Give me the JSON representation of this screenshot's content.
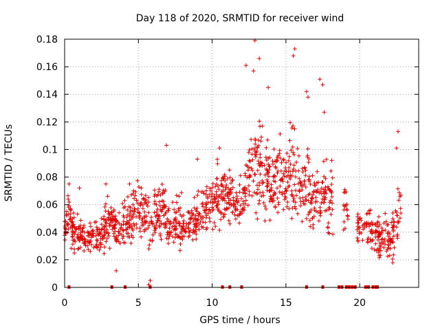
{
  "chart_data": {
    "type": "scatter",
    "title": "Day 118 of 2020, SRMTID for receiver wind",
    "xlabel": "GPS time / hours",
    "ylabel": "SRMTID / TECUs",
    "xlim": [
      0,
      24
    ],
    "ylim": [
      0,
      0.18
    ],
    "xticks": [
      0,
      5,
      10,
      15,
      20
    ],
    "xtick_labels": [
      "0",
      "5",
      "10",
      "15",
      "20"
    ],
    "yticks": [
      0,
      0.02,
      0.04,
      0.06,
      0.08,
      0.1,
      0.12,
      0.14,
      0.16,
      0.18
    ],
    "ytick_labels": [
      "0",
      "0.02",
      "0.04",
      "0.06",
      "0.08",
      "0.1",
      "0.12",
      "0.14",
      "0.16",
      "0.18"
    ],
    "grid": true,
    "marker": "+",
    "color": "#e00000",
    "series": [
      {
        "name": "SRMTID",
        "density_profile": [
          [
            0.0,
            0.04,
            0.006,
            0.0
          ],
          [
            0.3,
            0.055,
            0.01,
            0.0
          ],
          [
            0.6,
            0.04,
            0.01,
            0.0
          ],
          [
            1.5,
            0.035,
            0.008,
            0.0
          ],
          [
            2.5,
            0.038,
            0.01,
            0.0
          ],
          [
            3.0,
            0.05,
            0.012,
            0.0
          ],
          [
            3.3,
            0.045,
            0.008,
            0.0
          ],
          [
            4.0,
            0.045,
            0.012,
            0.0
          ],
          [
            4.7,
            0.055,
            0.014,
            0.0
          ],
          [
            5.0,
            0.062,
            0.014,
            0.0
          ],
          [
            5.8,
            0.045,
            0.016,
            0.0
          ],
          [
            6.5,
            0.055,
            0.014,
            0.0
          ],
          [
            7.5,
            0.048,
            0.012,
            0.0
          ],
          [
            8.5,
            0.047,
            0.012,
            0.0
          ],
          [
            9.5,
            0.056,
            0.013,
            0.0
          ],
          [
            10.5,
            0.068,
            0.014,
            0.0
          ],
          [
            11.5,
            0.063,
            0.012,
            0.0
          ],
          [
            12.0,
            0.06,
            0.012,
            0.0
          ],
          [
            12.5,
            0.08,
            0.02,
            0.0
          ],
          [
            13.0,
            0.09,
            0.025,
            0.0
          ],
          [
            13.5,
            0.085,
            0.025,
            0.0
          ],
          [
            14.0,
            0.072,
            0.016,
            0.0
          ],
          [
            14.5,
            0.078,
            0.018,
            0.0
          ],
          [
            15.0,
            0.075,
            0.016,
            0.0
          ],
          [
            15.5,
            0.085,
            0.024,
            0.0
          ],
          [
            16.0,
            0.065,
            0.016,
            0.0
          ],
          [
            16.5,
            0.07,
            0.02,
            0.0
          ],
          [
            17.0,
            0.06,
            0.015,
            0.0
          ],
          [
            17.5,
            0.07,
            0.018,
            0.0
          ],
          [
            18.0,
            0.06,
            0.016,
            0.0
          ],
          [
            18.5,
            0.058,
            0.016,
            0.0
          ],
          [
            19.0,
            0.06,
            0.014,
            0.0
          ],
          [
            19.5,
            0.05,
            0.012,
            0.0
          ],
          [
            20.0,
            0.045,
            0.01,
            0.0
          ],
          [
            20.8,
            0.04,
            0.012,
            0.0
          ],
          [
            21.5,
            0.035,
            0.012,
            0.0
          ],
          [
            22.0,
            0.035,
            0.012,
            0.0
          ],
          [
            22.5,
            0.045,
            0.015,
            0.0
          ],
          [
            22.8,
            0.055,
            0.02,
            0.0
          ]
        ]
      }
    ],
    "zero_marks_x": [
      0.3,
      3.2,
      4.1,
      5.8,
      10.7,
      11.2,
      12.0,
      16.4,
      17.5,
      18.6,
      18.8,
      19.1,
      19.3,
      19.5,
      19.7,
      20.4,
      20.6,
      20.9,
      21.1,
      21.2
    ],
    "gaps": [
      [
        18.2,
        18.9
      ],
      [
        19.2,
        19.8
      ],
      [
        20.9,
        21.0
      ]
    ],
    "highlights": [
      {
        "x": 12.9,
        "y": 0.179
      },
      {
        "x": 15.6,
        "y": 0.173
      },
      {
        "x": 15.5,
        "y": 0.168
      },
      {
        "x": 12.3,
        "y": 0.161
      },
      {
        "x": 12.8,
        "y": 0.157
      },
      {
        "x": 13.2,
        "y": 0.166
      },
      {
        "x": 17.3,
        "y": 0.151
      },
      {
        "x": 17.5,
        "y": 0.147
      },
      {
        "x": 13.8,
        "y": 0.145
      },
      {
        "x": 16.4,
        "y": 0.142
      },
      {
        "x": 16.5,
        "y": 0.138
      },
      {
        "x": 17.6,
        "y": 0.127
      },
      {
        "x": 22.6,
        "y": 0.113
      },
      {
        "x": 22.5,
        "y": 0.101
      },
      {
        "x": 6.9,
        "y": 0.103
      },
      {
        "x": 5.8,
        "y": 0.005
      },
      {
        "x": 5.7,
        "y": 0.002
      },
      {
        "x": 3.5,
        "y": 0.012
      },
      {
        "x": 0.3,
        "y": 0.075
      },
      {
        "x": 1.0,
        "y": 0.072
      },
      {
        "x": 2.8,
        "y": 0.075
      },
      {
        "x": 4.4,
        "y": 0.075
      },
      {
        "x": 10.5,
        "y": 0.101
      },
      {
        "x": 9.0,
        "y": 0.093
      }
    ]
  }
}
